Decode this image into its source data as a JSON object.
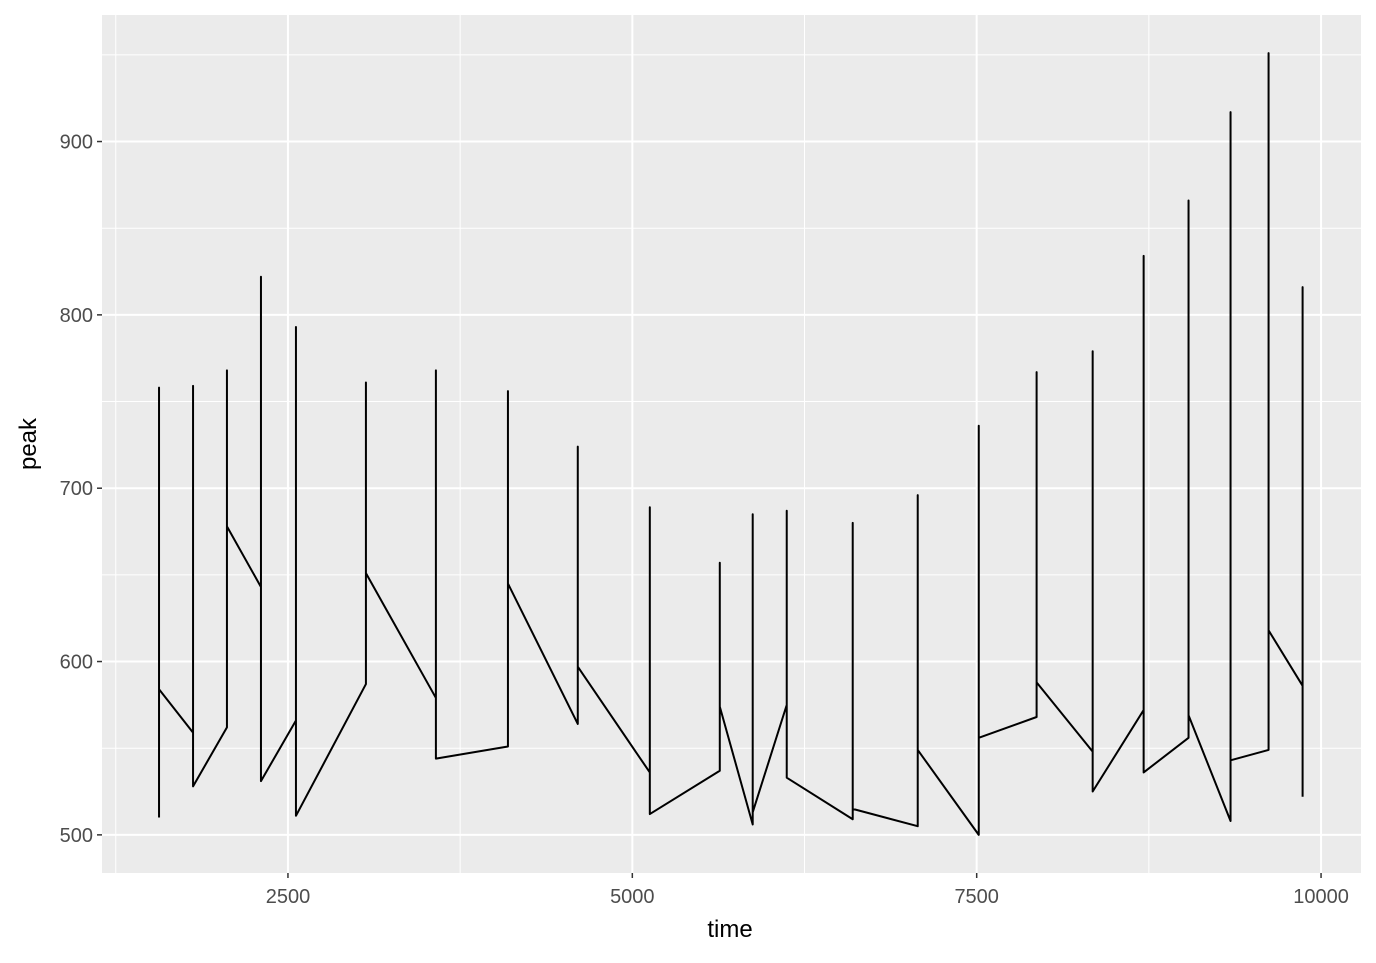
{
  "chart_data": {
    "type": "line",
    "x_label": "time",
    "y_label": "peak",
    "x": [
      1564,
      1564,
      1564,
      1811,
      1811,
      1811,
      2057,
      2057,
      2057,
      2304,
      2304,
      2304,
      2558,
      2558,
      2558,
      3066,
      3066,
      3066,
      3574,
      3574,
      3574,
      4097,
      4097,
      4097,
      4604,
      4604,
      4604,
      5127,
      5127,
      5127,
      5635,
      5635,
      5635,
      5874,
      5874,
      5874,
      6121,
      6121,
      6121,
      6600,
      6600,
      6600,
      7072,
      7072,
      7072,
      7515,
      7515,
      7515,
      7935,
      7935,
      7935,
      8342,
      8342,
      8342,
      8712,
      8712,
      8712,
      9038,
      9038,
      9038,
      9343,
      9343,
      9343,
      9619,
      9619,
      9619,
      9866,
      9866,
      9866
    ],
    "series": [
      {
        "name": "peak",
        "color": "#000000",
        "values": [
          510,
          758,
          584,
          559,
          759,
          528,
          562,
          768,
          678,
          643,
          822,
          531,
          566,
          793,
          511,
          587,
          761,
          651,
          579,
          768,
          544,
          551,
          756,
          645,
          564,
          724,
          597,
          536,
          689,
          512,
          537,
          657,
          574,
          506,
          685,
          513,
          575,
          687,
          533,
          509,
          680,
          515,
          505,
          696,
          549,
          500,
          736,
          556,
          568,
          767,
          588,
          548,
          779,
          525,
          572,
          834,
          536,
          556,
          866,
          569,
          508,
          917,
          543,
          549,
          951,
          618,
          586,
          816,
          522
        ]
      }
    ],
    "xlim": [
      1150,
      10290
    ],
    "xticks": [
      2500,
      5000,
      7500,
      10000
    ],
    "ylim": [
      478,
      973
    ],
    "yticks": [
      500,
      600,
      700,
      800,
      900
    ],
    "grid": true
  }
}
